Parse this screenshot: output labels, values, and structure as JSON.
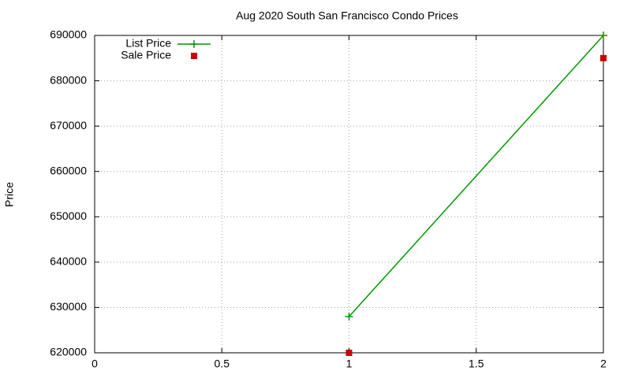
{
  "chart_data": {
    "type": "line",
    "title": "Aug 2020 South San Francisco Condo Prices",
    "y_label": "Price",
    "x": [
      1,
      2
    ],
    "series": [
      {
        "name": "List Price",
        "color": "#009900",
        "style": "linespoints",
        "values": [
          628000,
          690000
        ]
      },
      {
        "name": "Sale Price",
        "color": "#cc0000",
        "style": "points",
        "values": [
          620000,
          685000
        ]
      }
    ],
    "xlim": [
      0,
      2
    ],
    "xticks": [
      0,
      0.5,
      1,
      1.5,
      2
    ],
    "ylim": [
      620000,
      690000
    ],
    "yticks": [
      620000,
      630000,
      640000,
      650000,
      660000,
      670000,
      680000,
      690000
    ],
    "grid": true,
    "legend": "top-left"
  }
}
